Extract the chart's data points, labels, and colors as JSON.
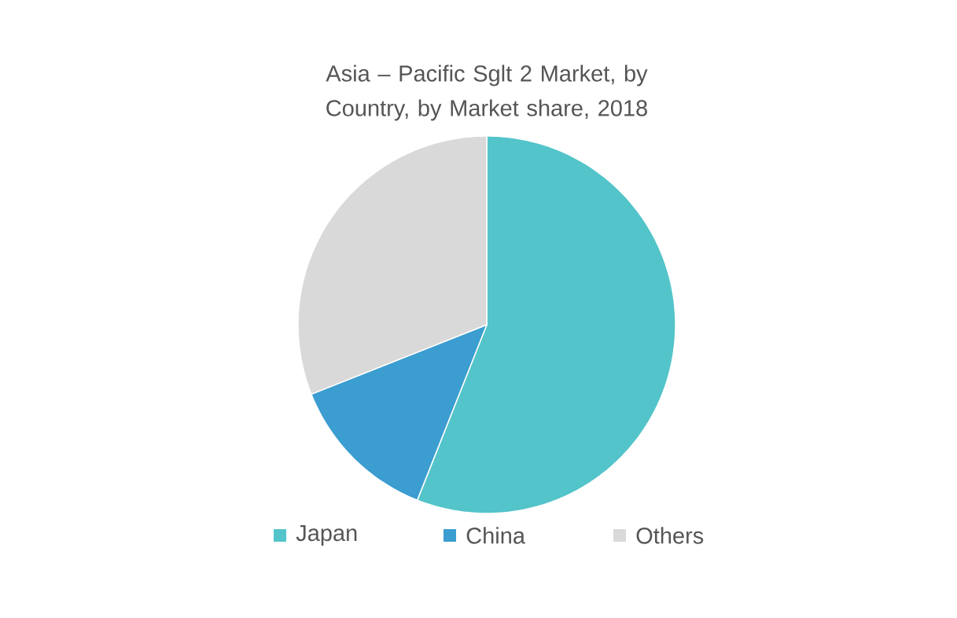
{
  "chart_data": {
    "type": "pie",
    "title": "Asia – Pacific Sglt 2 Market, by Country, by Market share, 2018",
    "categories": [
      "Japan",
      "China",
      "Others"
    ],
    "values": [
      56,
      13,
      31
    ],
    "colors": [
      "#53c4c9",
      "#3b9dd0",
      "#d9d9d9"
    ],
    "legend": "bottom"
  }
}
